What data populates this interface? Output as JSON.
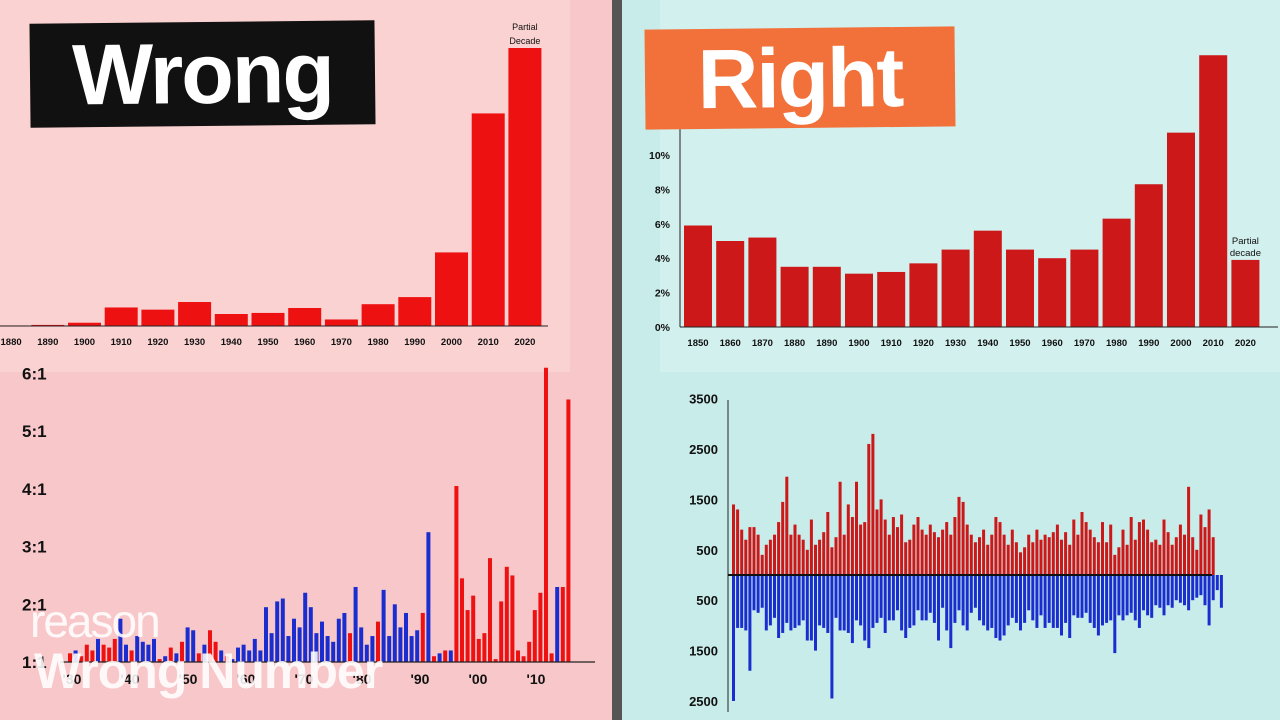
{
  "labels": {
    "wrong": "Wrong",
    "right": "Right"
  },
  "watermark": {
    "brand": "reason",
    "show": "Wrong Number"
  },
  "colors": {
    "red": "#ee1111",
    "red_dark": "#cc1818",
    "blue": "#1a2ed0",
    "left_bg": "#f8c7c9",
    "right_bg": "#c8ecea"
  },
  "chart_data": [
    {
      "type": "bar",
      "panel": "wrong",
      "categories": [
        "1880",
        "1890",
        "1900",
        "1910",
        "1920",
        "1930",
        "1940",
        "1950",
        "1960",
        "1970",
        "1980",
        "1990",
        "2000",
        "2010",
        "2020"
      ],
      "values": [
        0.1,
        0.2,
        0.6,
        3.4,
        3.0,
        4.4,
        2.2,
        2.4,
        3.3,
        1.2,
        4.0,
        5.3,
        13.5,
        39.0,
        51.0
      ],
      "annotations": [
        "Partial",
        "Decade"
      ],
      "ylim": [
        0,
        55
      ]
    },
    {
      "type": "bar",
      "panel": "right",
      "categories": [
        "1850",
        "1860",
        "1870",
        "1880",
        "1890",
        "1900",
        "1910",
        "1920",
        "1930",
        "1940",
        "1950",
        "1960",
        "1970",
        "1980",
        "1990",
        "2000",
        "2010",
        "2020"
      ],
      "values": [
        5.9,
        5.0,
        5.2,
        3.5,
        3.5,
        3.1,
        3.2,
        3.7,
        4.5,
        5.6,
        4.5,
        4.0,
        4.5,
        6.3,
        8.3,
        11.3,
        15.8,
        3.9
      ],
      "yticks": [
        "0%",
        "2%",
        "4%",
        "6%",
        "8%",
        "10%"
      ],
      "ylim": [
        0,
        17
      ],
      "annotations": [
        "Partial",
        "decade"
      ]
    },
    {
      "type": "bar",
      "panel": "wrong",
      "yticks": [
        "1:1",
        "2:1",
        "3:1",
        "4:1",
        "5:1",
        "6:1"
      ],
      "xticks": [
        "'30",
        "'40",
        "'50",
        "'60",
        "'70",
        "'80",
        "'90",
        "'00",
        "'10"
      ],
      "ylim": [
        1,
        6
      ],
      "series": [
        {
          "color": "red",
          "values": []
        },
        {
          "color": "blue",
          "values": []
        }
      ],
      "bars": [
        {
          "c": "r",
          "v": 1.15
        },
        {
          "c": "b",
          "v": 1.2
        },
        {
          "c": "r",
          "v": 1.1
        },
        {
          "c": "r",
          "v": 1.3
        },
        {
          "c": "r",
          "v": 1.2
        },
        {
          "c": "b",
          "v": 1.4
        },
        {
          "c": "r",
          "v": 1.3
        },
        {
          "c": "r",
          "v": 1.25
        },
        {
          "c": "r",
          "v": 1.4
        },
        {
          "c": "b",
          "v": 1.75
        },
        {
          "c": "b",
          "v": 1.3
        },
        {
          "c": "r",
          "v": 1.2
        },
        {
          "c": "b",
          "v": 1.45
        },
        {
          "c": "b",
          "v": 1.35
        },
        {
          "c": "b",
          "v": 1.3
        },
        {
          "c": "b",
          "v": 1.4
        },
        {
          "c": "r",
          "v": 1.05
        },
        {
          "c": "b",
          "v": 1.1
        },
        {
          "c": "r",
          "v": 1.25
        },
        {
          "c": "b",
          "v": 1.15
        },
        {
          "c": "r",
          "v": 1.35
        },
        {
          "c": "b",
          "v": 1.6
        },
        {
          "c": "b",
          "v": 1.55
        },
        {
          "c": "r",
          "v": 1.15
        },
        {
          "c": "b",
          "v": 1.3
        },
        {
          "c": "r",
          "v": 1.55
        },
        {
          "c": "r",
          "v": 1.35
        },
        {
          "c": "b",
          "v": 1.2
        },
        {
          "c": "r",
          "v": 1.1
        },
        {
          "c": "b",
          "v": 1.05
        },
        {
          "c": "b",
          "v": 1.25
        },
        {
          "c": "b",
          "v": 1.3
        },
        {
          "c": "b",
          "v": 1.2
        },
        {
          "c": "b",
          "v": 1.4
        },
        {
          "c": "b",
          "v": 1.2
        },
        {
          "c": "b",
          "v": 1.95
        },
        {
          "c": "b",
          "v": 1.5
        },
        {
          "c": "b",
          "v": 2.05
        },
        {
          "c": "b",
          "v": 2.1
        },
        {
          "c": "b",
          "v": 1.45
        },
        {
          "c": "b",
          "v": 1.75
        },
        {
          "c": "b",
          "v": 1.6
        },
        {
          "c": "b",
          "v": 2.2
        },
        {
          "c": "b",
          "v": 1.95
        },
        {
          "c": "b",
          "v": 1.5
        },
        {
          "c": "b",
          "v": 1.7
        },
        {
          "c": "b",
          "v": 1.45
        },
        {
          "c": "b",
          "v": 1.35
        },
        {
          "c": "b",
          "v": 1.75
        },
        {
          "c": "b",
          "v": 1.85
        },
        {
          "c": "r",
          "v": 1.5
        },
        {
          "c": "b",
          "v": 2.3
        },
        {
          "c": "b",
          "v": 1.6
        },
        {
          "c": "b",
          "v": 1.3
        },
        {
          "c": "b",
          "v": 1.45
        },
        {
          "c": "r",
          "v": 1.7
        },
        {
          "c": "b",
          "v": 2.25
        },
        {
          "c": "b",
          "v": 1.45
        },
        {
          "c": "b",
          "v": 2.0
        },
        {
          "c": "b",
          "v": 1.6
        },
        {
          "c": "b",
          "v": 1.85
        },
        {
          "c": "b",
          "v": 1.45
        },
        {
          "c": "b",
          "v": 1.55
        },
        {
          "c": "r",
          "v": 1.85
        },
        {
          "c": "b",
          "v": 3.25
        },
        {
          "c": "r",
          "v": 1.1
        },
        {
          "c": "b",
          "v": 1.15
        },
        {
          "c": "r",
          "v": 1.2
        },
        {
          "c": "b",
          "v": 1.2
        },
        {
          "c": "r",
          "v": 4.05
        },
        {
          "c": "r",
          "v": 2.45
        },
        {
          "c": "r",
          "v": 1.9
        },
        {
          "c": "r",
          "v": 2.15
        },
        {
          "c": "r",
          "v": 1.4
        },
        {
          "c": "r",
          "v": 1.5
        },
        {
          "c": "r",
          "v": 2.8
        },
        {
          "c": "r",
          "v": 1.05
        },
        {
          "c": "r",
          "v": 2.05
        },
        {
          "c": "r",
          "v": 2.65
        },
        {
          "c": "r",
          "v": 2.5
        },
        {
          "c": "r",
          "v": 1.2
        },
        {
          "c": "r",
          "v": 1.1
        },
        {
          "c": "r",
          "v": 1.35
        },
        {
          "c": "r",
          "v": 1.9
        },
        {
          "c": "r",
          "v": 2.2
        },
        {
          "c": "r",
          "v": 6.1
        },
        {
          "c": "r",
          "v": 1.15
        },
        {
          "c": "b",
          "v": 2.3
        },
        {
          "c": "r",
          "v": 2.3
        },
        {
          "c": "r",
          "v": 5.55
        }
      ]
    },
    {
      "type": "bar",
      "panel": "right",
      "yticks_top": [
        "500",
        "1500",
        "2500",
        "3500"
      ],
      "yticks_bottom": [
        "500",
        "1500",
        "2500"
      ],
      "ylim": [
        -2500,
        3500
      ],
      "up": [
        1400,
        1300,
        900,
        700,
        950,
        950,
        800,
        400,
        600,
        700,
        800,
        1050,
        1450,
        1950,
        800,
        1000,
        800,
        700,
        500,
        1100,
        600,
        700,
        850,
        1250,
        550,
        750,
        1850,
        800,
        1400,
        1150,
        1850,
        1000,
        1050,
        2600,
        2800,
        1300,
        1500,
        1100,
        800,
        1150,
        950,
        1200,
        650,
        700,
        1000,
        1150,
        900,
        800,
        1000,
        850,
        750,
        900,
        1050,
        800,
        1150,
        1550,
        1450,
        1000,
        800,
        650,
        750,
        900,
        600,
        800,
        1150,
        1050,
        800,
        600,
        900,
        650,
        450,
        550,
        800,
        650,
        900,
        700,
        800,
        750,
        850,
        1000,
        700,
        850,
        600,
        1100,
        800,
        1250,
        1050,
        900,
        750,
        650,
        1050,
        650,
        1000,
        400,
        550,
        900,
        600,
        1150,
        700,
        1050,
        1100,
        900,
        650,
        700,
        600,
        1100,
        850,
        600,
        750,
        1000,
        800,
        1750,
        750,
        500,
        1200,
        950,
        1300,
        750
      ],
      "down": [
        2500,
        1050,
        1050,
        1100,
        1900,
        700,
        750,
        650,
        1100,
        1000,
        850,
        1250,
        1150,
        950,
        1100,
        1050,
        1000,
        900,
        1300,
        1300,
        1500,
        1000,
        1050,
        1150,
        2450,
        850,
        1100,
        1100,
        1150,
        1350,
        900,
        1000,
        1300,
        1450,
        1050,
        950,
        850,
        1150,
        900,
        900,
        700,
        1100,
        1250,
        1050,
        1000,
        700,
        900,
        900,
        750,
        950,
        1300,
        650,
        1100,
        1450,
        950,
        700,
        1000,
        1100,
        750,
        650,
        900,
        1000,
        1100,
        1050,
        1250,
        1300,
        1200,
        1000,
        850,
        950,
        1100,
        950,
        700,
        900,
        1050,
        800,
        1050,
        950,
        1050,
        1050,
        1200,
        950,
        1250,
        800,
        850,
        850,
        750,
        950,
        1050,
        1200,
        1000,
        950,
        900,
        1550,
        800,
        900,
        800,
        750,
        900,
        1050,
        700,
        800,
        850,
        600,
        650,
        800,
        600,
        650,
        500,
        550,
        600,
        700,
        500,
        450,
        400,
        600,
        1000,
        500,
        300,
        650
      ]
    }
  ]
}
